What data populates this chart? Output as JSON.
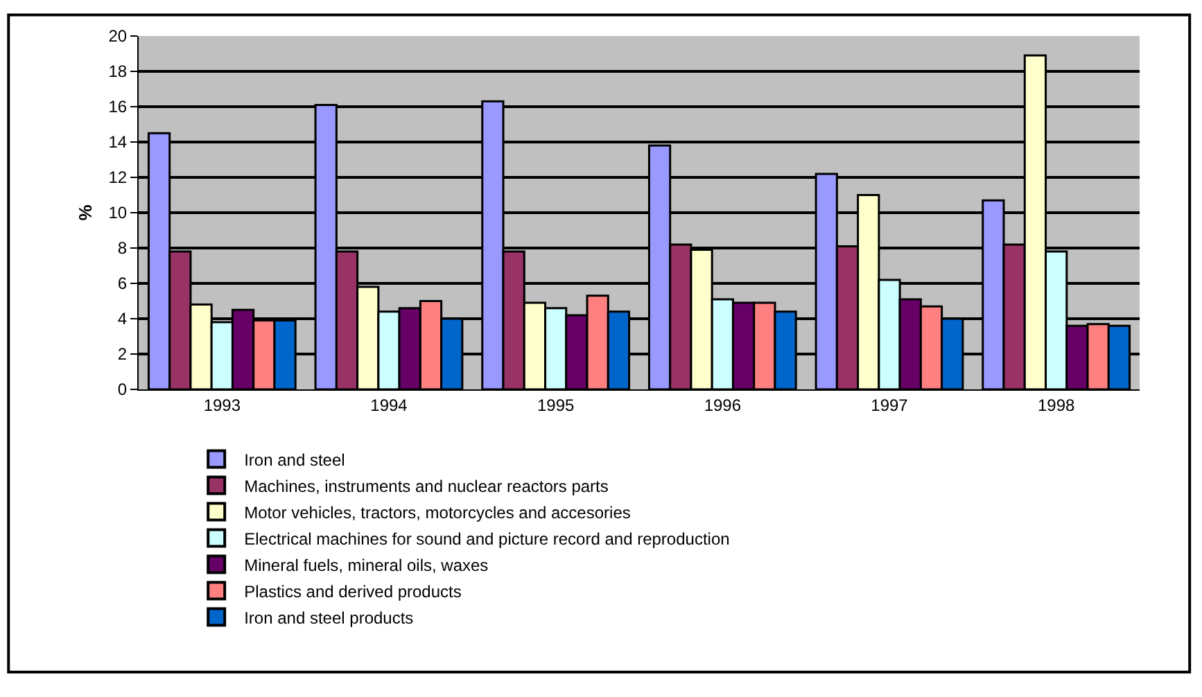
{
  "chart_data": {
    "type": "bar",
    "ylabel": "%",
    "categories": [
      "1993",
      "1994",
      "1995",
      "1996",
      "1997",
      "1998"
    ],
    "series": [
      {
        "name": "Iron and steel",
        "color": "#9999ff",
        "values": [
          14.5,
          16.1,
          16.3,
          13.8,
          12.2,
          10.7
        ]
      },
      {
        "name": "Machines, instruments and nuclear reactors parts",
        "color": "#993366",
        "values": [
          7.8,
          7.8,
          7.8,
          8.2,
          8.1,
          8.2
        ]
      },
      {
        "name": "Motor vehicles, tractors, motorcycles and accesories",
        "color": "#ffffcc",
        "values": [
          4.8,
          5.8,
          4.9,
          7.9,
          11.0,
          18.9
        ]
      },
      {
        "name": "Electrical machines for sound and picture record and reproduction",
        "color": "#ccffff",
        "values": [
          3.8,
          4.4,
          4.6,
          5.1,
          6.2,
          7.8
        ]
      },
      {
        "name": "Mineral fuels, mineral oils, waxes",
        "color": "#660066",
        "values": [
          4.5,
          4.6,
          4.2,
          4.9,
          5.1,
          3.6
        ]
      },
      {
        "name": "Plastics and derived products",
        "color": "#ff8080",
        "values": [
          3.9,
          5.0,
          5.3,
          4.9,
          4.7,
          3.7
        ]
      },
      {
        "name": "Iron and steel products",
        "color": "#0066cc",
        "values": [
          3.9,
          4.0,
          4.4,
          4.4,
          4.0,
          3.6
        ]
      }
    ],
    "ylim": [
      0,
      20
    ],
    "yticks": [
      0,
      2,
      4,
      6,
      8,
      10,
      12,
      14,
      16,
      18,
      20
    ],
    "grid": "y",
    "legend": "bottom left"
  }
}
